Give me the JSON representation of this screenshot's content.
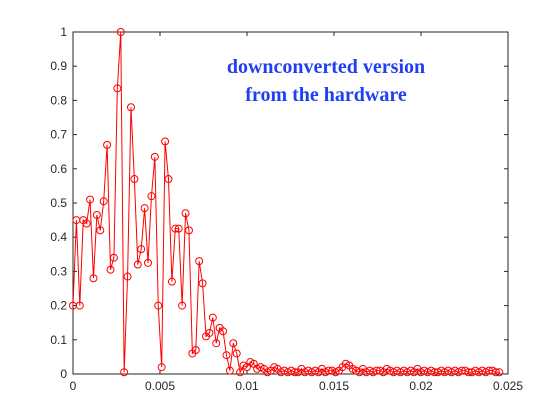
{
  "chart_data": {
    "type": "line",
    "title": "",
    "xlabel": "",
    "ylabel": "",
    "xlim": [
      0,
      0.025
    ],
    "ylim": [
      0,
      1
    ],
    "x_ticks": [
      0,
      0.005,
      0.01,
      0.015,
      0.02,
      0.025
    ],
    "x_tick_labels": [
      "0",
      "0.005",
      "0.01",
      "0.015",
      "0.02",
      "0.025"
    ],
    "y_ticks": [
      0,
      0.1,
      0.2,
      0.3,
      0.4,
      0.5,
      0.6,
      0.7,
      0.8,
      0.9,
      1
    ],
    "y_tick_labels": [
      "0",
      "0.1",
      "0.2",
      "0.3",
      "0.4",
      "0.5",
      "0.6",
      "0.7",
      "0.8",
      "0.9",
      "1"
    ],
    "grid": false,
    "box": true,
    "annotation": [
      "downconverted version",
      "from the hardware"
    ],
    "series": [
      {
        "color": "#ff0000",
        "marker": "circle",
        "x": [
          0,
          0.000196,
          0.000392,
          0.000588,
          0.000784,
          0.00098,
          0.001176,
          0.001372,
          0.001568,
          0.001764,
          0.00196,
          0.002156,
          0.002352,
          0.002548,
          0.002744,
          0.00294,
          0.003136,
          0.003332,
          0.003528,
          0.003724,
          0.00392,
          0.004116,
          0.004312,
          0.004508,
          0.004704,
          0.0049,
          0.005096,
          0.005292,
          0.005488,
          0.005684,
          0.00588,
          0.006076,
          0.006272,
          0.006468,
          0.006664,
          0.00686,
          0.007056,
          0.007252,
          0.007448,
          0.007644,
          0.00784,
          0.008036,
          0.008232,
          0.008428,
          0.008624,
          0.00882,
          0.009016,
          0.009212,
          0.009408,
          0.009604,
          0.0098,
          0.009996,
          0.010192,
          0.010388,
          0.010584,
          0.01078,
          0.010976,
          0.011172,
          0.011368,
          0.011564,
          0.01176,
          0.011956,
          0.012152,
          0.012348,
          0.012544,
          0.01274,
          0.012936,
          0.013132,
          0.013328,
          0.013524,
          0.01372,
          0.013916,
          0.014112,
          0.014308,
          0.014504,
          0.0147,
          0.014896,
          0.015092,
          0.015288,
          0.015484,
          0.01568,
          0.015876,
          0.016072,
          0.016268,
          0.016464,
          0.01666,
          0.016856,
          0.017052,
          0.017248,
          0.017444,
          0.01764,
          0.017836,
          0.018032,
          0.018228,
          0.018424,
          0.01862,
          0.018816,
          0.019012,
          0.019208,
          0.019404,
          0.0196,
          0.019796,
          0.019992,
          0.020188,
          0.020384,
          0.02058,
          0.020776,
          0.020972,
          0.021168,
          0.021364,
          0.02156,
          0.021756,
          0.021952,
          0.022148,
          0.022344,
          0.02254,
          0.022736,
          0.022932,
          0.023128,
          0.023324,
          0.02352,
          0.023716,
          0.023912,
          0.024108,
          0.024304,
          0.0245
        ],
        "y": [
          0.2,
          0.45,
          0.2,
          0.45,
          0.44,
          0.51,
          0.28,
          0.465,
          0.42,
          0.505,
          0.67,
          0.305,
          0.34,
          0.835,
          1.0,
          0.005,
          0.285,
          0.78,
          0.57,
          0.32,
          0.365,
          0.485,
          0.325,
          0.52,
          0.635,
          0.2,
          0.02,
          0.68,
          0.57,
          0.27,
          0.425,
          0.425,
          0.2,
          0.47,
          0.42,
          0.06,
          0.07,
          0.33,
          0.265,
          0.11,
          0.12,
          0.165,
          0.09,
          0.135,
          0.125,
          0.055,
          0.01,
          0.09,
          0.06,
          0.005,
          0.025,
          0.02,
          0.035,
          0.03,
          0.015,
          0.02,
          0.015,
          0.005,
          0.01,
          0.02,
          0.015,
          0.005,
          0.01,
          0.005,
          0.01,
          0.005,
          0.005,
          0.015,
          0.005,
          0.01,
          0.005,
          0.01,
          0.005,
          0.015,
          0.005,
          0.01,
          0.01,
          0.005,
          0.01,
          0.02,
          0.03,
          0.025,
          0.015,
          0.01,
          0.005,
          0.015,
          0.005,
          0.01,
          0.005,
          0.01,
          0.01,
          0.005,
          0.015,
          0.01,
          0.005,
          0.01,
          0.005,
          0.01,
          0.005,
          0.01,
          0.005,
          0.015,
          0.005,
          0.01,
          0.005,
          0.01,
          0.005,
          0.005,
          0.01,
          0.005,
          0.01,
          0.005,
          0.01,
          0.005,
          0.01,
          0.01,
          0.005,
          0.005,
          0.01,
          0.005,
          0.01,
          0.005,
          0.01,
          0.01,
          0.005,
          0.005
        ]
      }
    ]
  }
}
